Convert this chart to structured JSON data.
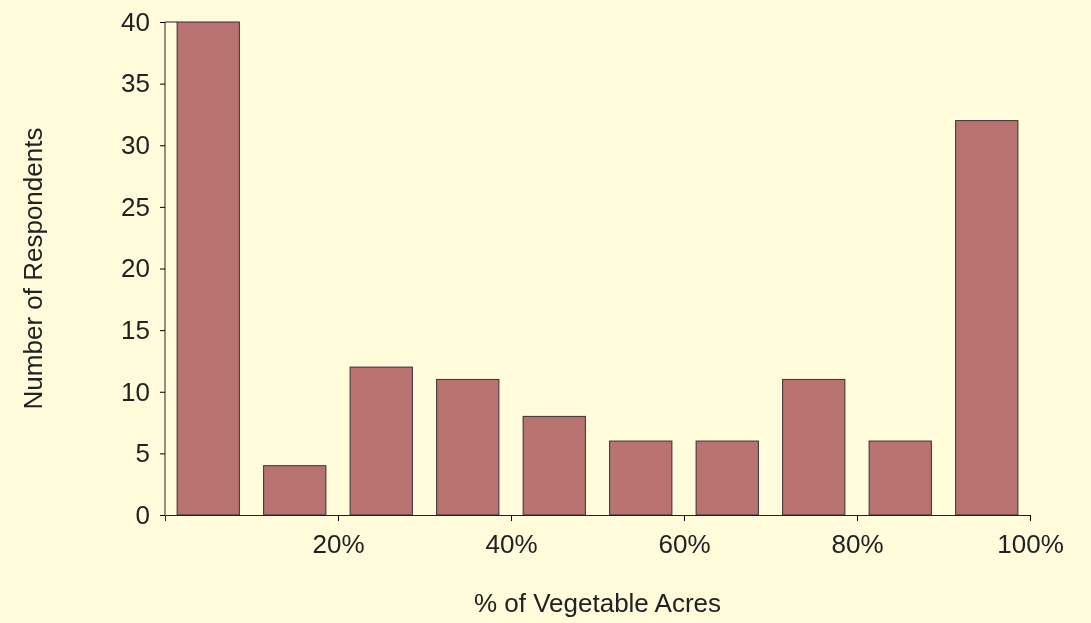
{
  "chart_data": {
    "type": "bar",
    "xlabel": "% of Vegetable Acres",
    "ylabel": "Number of Respondents",
    "x": [
      5,
      15,
      25,
      35,
      45,
      55,
      65,
      75,
      85,
      95
    ],
    "values": [
      40,
      4,
      12,
      11,
      8,
      6,
      6,
      11,
      6,
      32
    ],
    "color": "#b87370",
    "xlim": [
      0,
      100
    ],
    "xticks": [
      {
        "value": 20,
        "label": "20%"
      },
      {
        "value": 40,
        "label": "40%"
      },
      {
        "value": 60,
        "label": "60%"
      },
      {
        "value": 80,
        "label": "80%"
      },
      {
        "value": 100,
        "label": "100%"
      }
    ],
    "ylim": [
      0,
      40
    ],
    "yticks": [
      0,
      5,
      10,
      15,
      20,
      25,
      30,
      35,
      40
    ],
    "grid": false
  }
}
